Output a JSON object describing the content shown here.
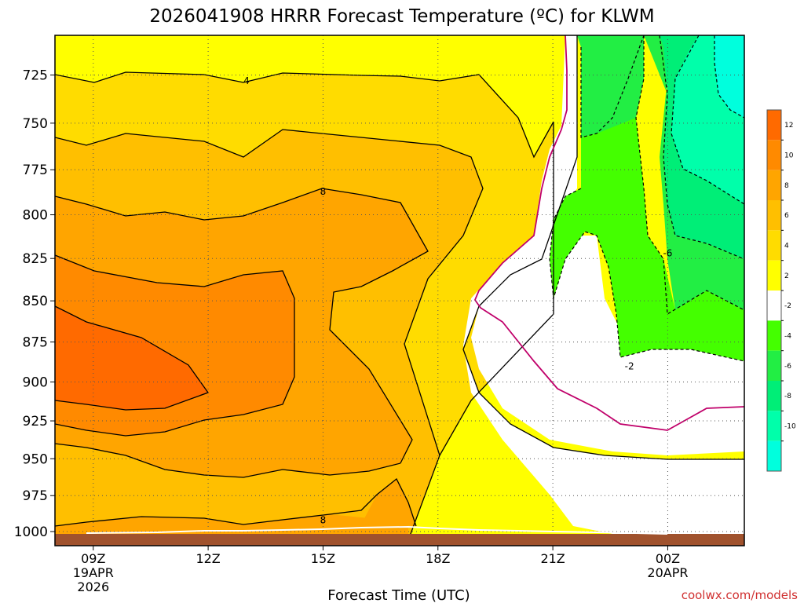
{
  "page": {
    "title": "2026041908 HRRR Forecast Temperature (ºC) for KLWM",
    "xlabel": "Forecast Time (UTC)",
    "credit": "coolwx.com/models"
  },
  "colors": {
    "ground": "#a0522d",
    "band_gt_12": "#ff6a00",
    "band_10_12": "#ff8a00",
    "band_8_10": "#ffa500",
    "band_6_8": "#ffbf00",
    "band_4_6": "#ffdc00",
    "band_2_4": "#ffff00",
    "band_-2_2": "#ffffff",
    "band_-4_-2": "#44ff00",
    "band_-6_-4": "#22ee44",
    "band_-8_-6": "#00ee77",
    "band_-10_-8": "#00ffaa",
    "band_lt_-10": "#00ffdd",
    "freezing_line": "#c0006a"
  },
  "chart_data": {
    "type": "contour",
    "title": "2026041908 HRRR Forecast Temperature (ºC) for KLWM",
    "xlabel": "Forecast Time (UTC)",
    "ylabel": "",
    "x_ticks": [
      {
        "hour": 9,
        "lines": [
          "09Z",
          "19APR",
          "2026"
        ]
      },
      {
        "hour": 12,
        "lines": [
          "12Z"
        ]
      },
      {
        "hour": 15,
        "lines": [
          "15Z"
        ]
      },
      {
        "hour": 18,
        "lines": [
          "18Z"
        ]
      },
      {
        "hour": 21,
        "lines": [
          "21Z"
        ]
      },
      {
        "hour": 24,
        "lines": [
          "00Z",
          "20APR"
        ]
      }
    ],
    "xlim": [
      8,
      26
    ],
    "y_ticks": [
      725,
      750,
      775,
      800,
      825,
      850,
      875,
      900,
      925,
      950,
      975,
      1000
    ],
    "ylim": [
      705,
      1010
    ],
    "y_scale": "log-pressure (inverted)",
    "grid": true,
    "contour_labels": [
      {
        "text": "4",
        "hour": 13.0,
        "pressure": 728
      },
      {
        "text": "8",
        "hour": 15.0,
        "pressure": 787
      },
      {
        "text": "8",
        "hour": 15.0,
        "pressure": 992
      },
      {
        "text": "-6",
        "hour": 24.0,
        "pressure": 822
      },
      {
        "text": "-2",
        "hour": 23.0,
        "pressure": 890
      }
    ],
    "colorbar": {
      "ticks": [
        "12",
        "10",
        "8",
        "6",
        "4",
        "2",
        "-2",
        "-4",
        "-6",
        "-8",
        "-10"
      ],
      "order_top_to_bottom": [
        "band_gt_12",
        "band_10_12",
        "band_8_10",
        "band_6_8",
        "band_4_6",
        "band_2_4",
        "band_-2_2",
        "band_-4_-2",
        "band_-6_-4",
        "band_-8_-6",
        "band_-10_-8",
        "band_lt_-10"
      ]
    }
  }
}
